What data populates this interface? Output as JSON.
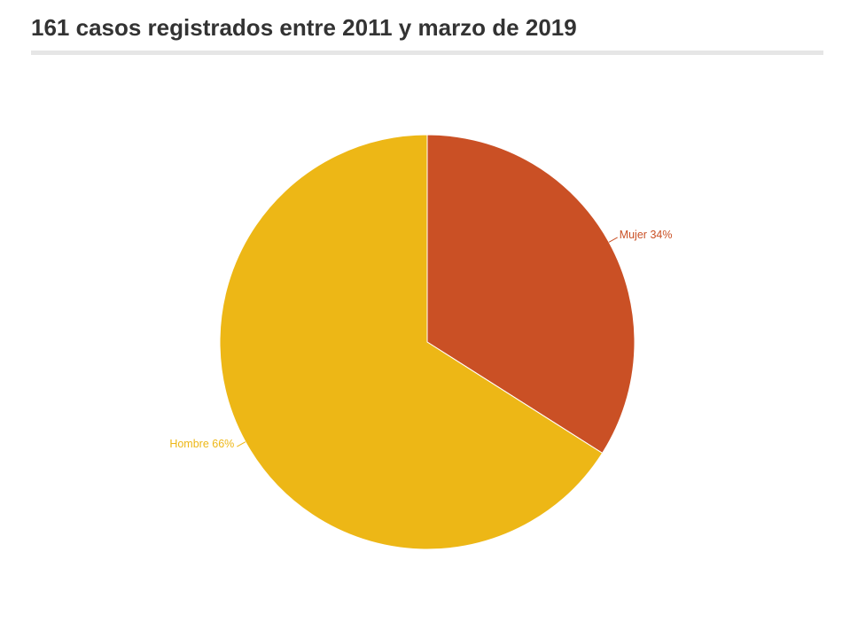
{
  "chart_data": {
    "type": "pie",
    "title": "161 casos registrados entre 2011 y marzo de 2019",
    "unit": "%",
    "slices": [
      {
        "label": "Mujer",
        "value": 34,
        "color": "#ca5025"
      },
      {
        "label": "Hombre",
        "value": 66,
        "color": "#edb716"
      }
    ]
  }
}
